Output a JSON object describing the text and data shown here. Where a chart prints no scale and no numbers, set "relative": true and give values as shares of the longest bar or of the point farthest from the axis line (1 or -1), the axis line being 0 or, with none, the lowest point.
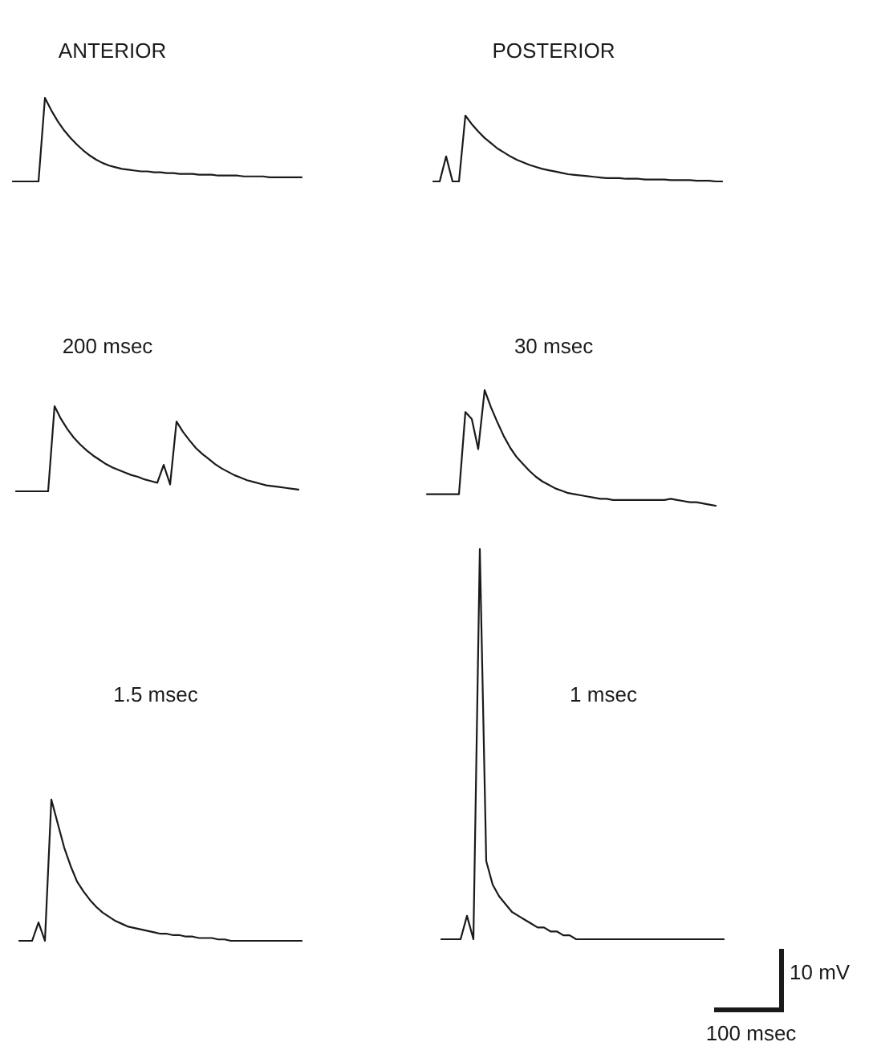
{
  "chart_data": [
    {
      "type": "line",
      "title": "ANTERIOR",
      "relative": true,
      "tick_labels": false,
      "color": "#1a1a1a",
      "categories": [
        null,
        null,
        null,
        null,
        null,
        null,
        null,
        null,
        null,
        null,
        null,
        null,
        null,
        null,
        null,
        null,
        null,
        null,
        null,
        null,
        null,
        null,
        null,
        null,
        null,
        null,
        null,
        null,
        null,
        null,
        null,
        null,
        null,
        null,
        null,
        null,
        null,
        null,
        null,
        null,
        null,
        null,
        null,
        null,
        null,
        null
      ],
      "values": [
        0,
        0,
        0,
        0,
        0,
        1,
        0.85,
        0.72,
        0.61,
        0.52,
        0.44,
        0.37,
        0.31,
        0.26,
        0.22,
        0.19,
        0.17,
        0.15,
        0.14,
        0.13,
        0.12,
        0.12,
        0.11,
        0.11,
        0.1,
        0.1,
        0.09,
        0.09,
        0.09,
        0.08,
        0.08,
        0.08,
        0.07,
        0.07,
        0.07,
        0.07,
        0.06,
        0.06,
        0.06,
        0.06,
        0.05,
        0.05,
        0.05,
        0.05,
        0.05,
        0.05
      ]
    },
    {
      "type": "line",
      "title": "POSTERIOR",
      "relative": true,
      "tick_labels": false,
      "color": "#1a1a1a",
      "categories": [
        null,
        null,
        null,
        null,
        null,
        null,
        null,
        null,
        null,
        null,
        null,
        null,
        null,
        null,
        null,
        null,
        null,
        null,
        null,
        null,
        null,
        null,
        null,
        null,
        null,
        null,
        null,
        null,
        null,
        null,
        null,
        null,
        null,
        null,
        null,
        null,
        null,
        null,
        null,
        null,
        null,
        null,
        null,
        null,
        null,
        null
      ],
      "values": [
        0,
        0,
        0.38,
        0,
        0,
        1,
        0.87,
        0.76,
        0.66,
        0.58,
        0.5,
        0.44,
        0.38,
        0.33,
        0.29,
        0.25,
        0.22,
        0.19,
        0.17,
        0.15,
        0.13,
        0.11,
        0.1,
        0.09,
        0.08,
        0.07,
        0.06,
        0.05,
        0.05,
        0.05,
        0.04,
        0.04,
        0.04,
        0.03,
        0.03,
        0.03,
        0.03,
        0.02,
        0.02,
        0.02,
        0.02,
        0.01,
        0.01,
        0.01,
        0,
        0
      ]
    },
    {
      "type": "line",
      "title": "200 msec",
      "relative": true,
      "tick_labels": false,
      "color": "#1a1a1a",
      "categories": [
        null,
        null,
        null,
        null,
        null,
        null,
        null,
        null,
        null,
        null,
        null,
        null,
        null,
        null,
        null,
        null,
        null,
        null,
        null,
        null,
        null,
        null,
        null,
        null,
        null,
        null,
        null,
        null,
        null,
        null,
        null,
        null,
        null,
        null,
        null,
        null,
        null,
        null,
        null,
        null,
        null,
        null,
        null,
        null,
        null
      ],
      "values": [
        0,
        0,
        0,
        0,
        0,
        0,
        1,
        0.85,
        0.73,
        0.63,
        0.55,
        0.48,
        0.42,
        0.37,
        0.32,
        0.28,
        0.25,
        0.22,
        0.19,
        0.17,
        0.14,
        0.12,
        0.1,
        0.31,
        0.08,
        0.82,
        0.7,
        0.6,
        0.51,
        0.44,
        0.38,
        0.32,
        0.27,
        0.23,
        0.19,
        0.16,
        0.13,
        0.11,
        0.09,
        0.07,
        0.06,
        0.05,
        0.04,
        0.03,
        0.02
      ]
    },
    {
      "type": "line",
      "title": "30 msec",
      "relative": true,
      "tick_labels": false,
      "color": "#1a1a1a",
      "categories": [
        null,
        null,
        null,
        null,
        null,
        null,
        null,
        null,
        null,
        null,
        null,
        null,
        null,
        null,
        null,
        null,
        null,
        null,
        null,
        null,
        null,
        null,
        null,
        null,
        null,
        null,
        null,
        null,
        null,
        null,
        null,
        null,
        null,
        null,
        null,
        null,
        null,
        null,
        null,
        null,
        null,
        null,
        null,
        null,
        null,
        null
      ],
      "values": [
        0.1,
        0.1,
        0.1,
        0.1,
        0.1,
        0.1,
        0.81,
        0.75,
        0.49,
        1,
        0.85,
        0.72,
        0.6,
        0.5,
        0.42,
        0.36,
        0.3,
        0.25,
        0.21,
        0.18,
        0.15,
        0.13,
        0.11,
        0.1,
        0.09,
        0.08,
        0.07,
        0.06,
        0.06,
        0.05,
        0.05,
        0.05,
        0.05,
        0.05,
        0.05,
        0.05,
        0.05,
        0.05,
        0.06,
        0.05,
        0.04,
        0.03,
        0.03,
        0.02,
        0.01,
        0
      ]
    },
    {
      "type": "line",
      "title": "1.5 msec",
      "relative": true,
      "tick_labels": false,
      "color": "#1a1a1a",
      "categories": [
        null,
        null,
        null,
        null,
        null,
        null,
        null,
        null,
        null,
        null,
        null,
        null,
        null,
        null,
        null,
        null,
        null,
        null,
        null,
        null,
        null,
        null,
        null,
        null,
        null,
        null,
        null,
        null,
        null,
        null,
        null,
        null,
        null,
        null,
        null,
        null,
        null,
        null,
        null,
        null,
        null,
        null,
        null,
        null,
        null
      ],
      "values": [
        0,
        0,
        0,
        0.13,
        0,
        1,
        0.83,
        0.66,
        0.53,
        0.42,
        0.35,
        0.29,
        0.24,
        0.2,
        0.17,
        0.14,
        0.12,
        0.1,
        0.09,
        0.08,
        0.07,
        0.06,
        0.05,
        0.05,
        0.04,
        0.04,
        0.03,
        0.03,
        0.02,
        0.02,
        0.02,
        0.01,
        0.01,
        0,
        0,
        0,
        0,
        0,
        0,
        0,
        0,
        0,
        0,
        0,
        0
      ]
    },
    {
      "type": "line",
      "title": "1 msec",
      "relative": true,
      "tick_labels": false,
      "color": "#1a1a1a",
      "annotations": [
        "10 mV",
        "100 msec"
      ],
      "categories": [
        null,
        null,
        null,
        null,
        null,
        null,
        null,
        null,
        null,
        null,
        null,
        null,
        null,
        null,
        null,
        null,
        null,
        null,
        null,
        null,
        null,
        null,
        null,
        null,
        null,
        null,
        null,
        null,
        null,
        null,
        null,
        null,
        null,
        null,
        null,
        null,
        null,
        null,
        null,
        null,
        null,
        null,
        null,
        null,
        null
      ],
      "values": [
        0,
        0,
        0,
        0,
        0.06,
        0,
        1,
        0.2,
        0.14,
        0.11,
        0.09,
        0.07,
        0.06,
        0.05,
        0.04,
        0.03,
        0.03,
        0.02,
        0.02,
        0.01,
        0.01,
        0,
        0,
        0,
        0,
        0,
        0,
        0,
        0,
        0,
        0,
        0,
        0,
        0,
        0,
        0,
        0,
        0,
        0,
        0,
        0,
        0,
        0,
        0,
        0
      ]
    }
  ]
}
